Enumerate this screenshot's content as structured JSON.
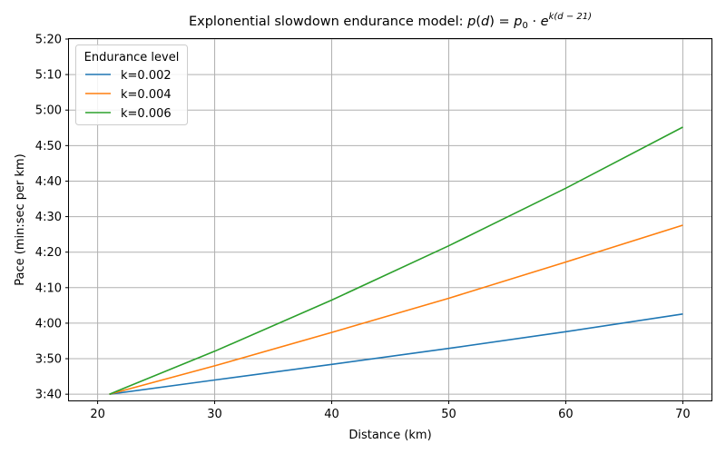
{
  "chart_data": {
    "type": "line",
    "title": {
      "prefix": "Explonential slowdown endurance model: ",
      "formula": "p(d) = p₀ · e^(k(d − 21))",
      "formula_parts": {
        "lhs": "p",
        "arg": "d",
        "p0_base": "p",
        "p0_sub": "0",
        "dot": "·",
        "e": "e",
        "exponent": "k(d − 21)"
      }
    },
    "xlabel": "Distance (km)",
    "ylabel": "Pace (min:sec per km)",
    "xlim": [
      17.55,
      72.45
    ],
    "ylim": [
      218.25,
      320
    ],
    "x_ticks": [
      20,
      30,
      40,
      50,
      60,
      70
    ],
    "y_ticks": [
      220,
      230,
      240,
      250,
      260,
      270,
      280,
      290,
      300,
      310,
      320
    ],
    "y_tick_labels": [
      "3:40",
      "3:50",
      "4:00",
      "4:10",
      "4:20",
      "4:30",
      "4:40",
      "4:50",
      "5:00",
      "5:10",
      "5:20"
    ],
    "grid": true,
    "legend": {
      "title": "Endurance level",
      "placement": "top-left"
    },
    "series": [
      {
        "name": "k=0.002",
        "color": "#1f77b4",
        "x": [
          21,
          30,
          40,
          50,
          60,
          70
        ],
        "y": [
          220,
          224,
          228.4,
          232.9,
          237.6,
          242.6
        ]
      },
      {
        "name": "k=0.004",
        "color": "#ff7f0e",
        "x": [
          21,
          30,
          40,
          50,
          60,
          70
        ],
        "y": [
          220,
          228.0,
          237.4,
          247.0,
          257.2,
          267.6
        ]
      },
      {
        "name": "k=0.006",
        "color": "#2ca02c",
        "x": [
          21,
          30,
          40,
          50,
          60,
          70
        ],
        "y": [
          220,
          232.1,
          246.5,
          261.8,
          278.0,
          295.2
        ]
      }
    ]
  }
}
